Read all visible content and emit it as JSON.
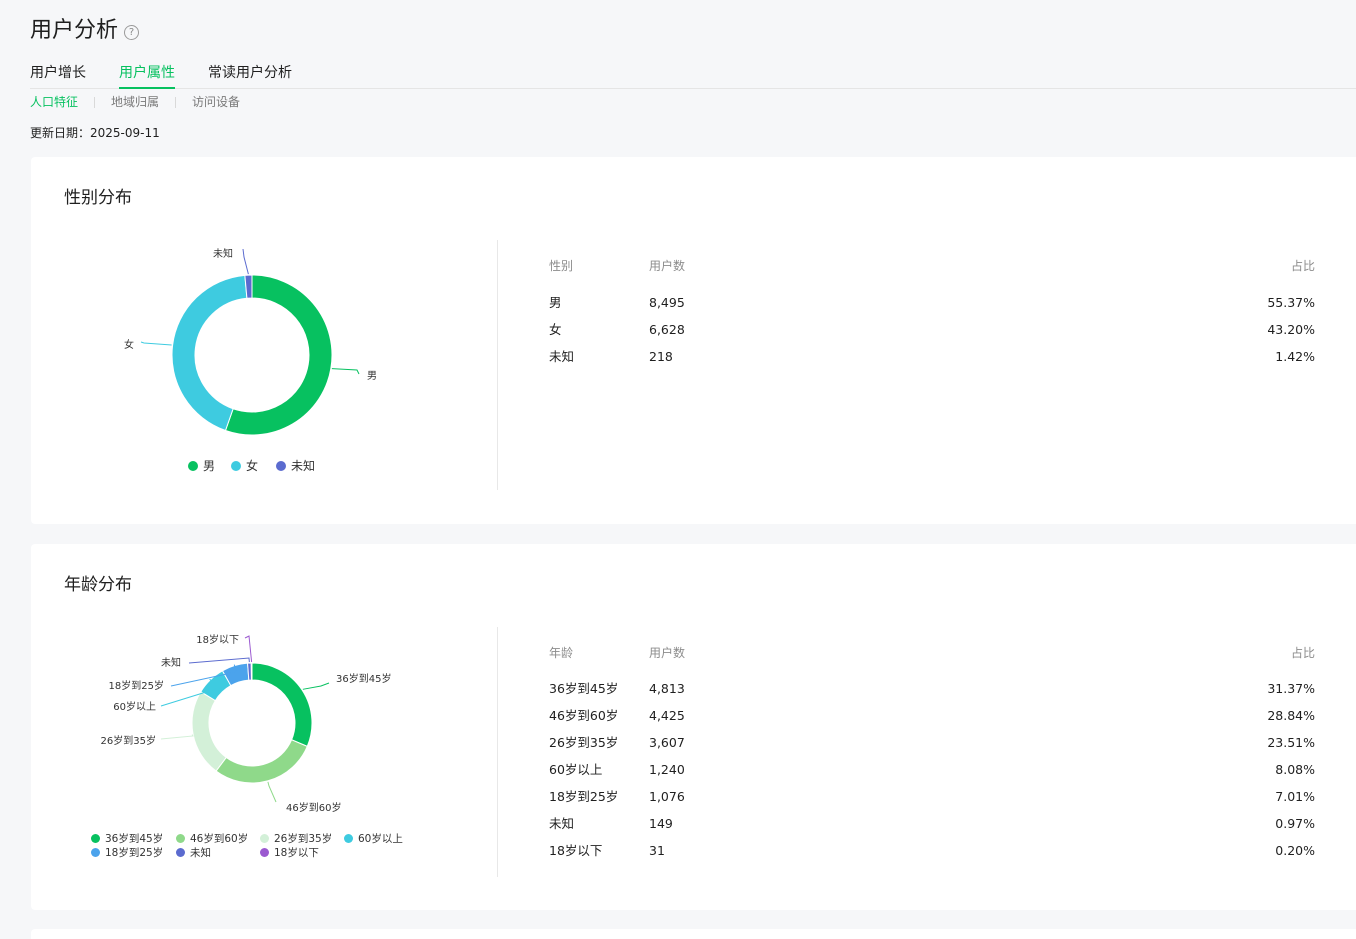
{
  "header": {
    "title": "用户分析",
    "help_icon": "question-circle-icon"
  },
  "tabs": [
    {
      "label": "用户增长",
      "active": false
    },
    {
      "label": "用户属性",
      "active": true
    },
    {
      "label": "常读用户分析",
      "active": false
    }
  ],
  "subtabs": [
    {
      "label": "人口特征",
      "active": true
    },
    {
      "label": "地域归属",
      "active": false
    },
    {
      "label": "访问设备",
      "active": false
    }
  ],
  "update": {
    "label": "更新日期：",
    "date": "2025-09-11"
  },
  "colors": {
    "accent": "#07c160"
  },
  "gender": {
    "title": "性别分布",
    "headers": {
      "c1": "性别",
      "c2": "用户数",
      "c3": "占比"
    },
    "rows": [
      {
        "name": "男",
        "count": "8,495",
        "pct": "55.37%",
        "color": "#07c160"
      },
      {
        "name": "女",
        "count": "6,628",
        "pct": "43.20%",
        "color": "#3ecbe0"
      },
      {
        "name": "未知",
        "count": "218",
        "pct": "1.42%",
        "color": "#5b6bcf"
      }
    ]
  },
  "age": {
    "title": "年龄分布",
    "headers": {
      "c1": "年龄",
      "c2": "用户数",
      "c3": "占比"
    },
    "rows": [
      {
        "name": "36岁到45岁",
        "count": "4,813",
        "pct": "31.37%",
        "color": "#07c160"
      },
      {
        "name": "46岁到60岁",
        "count": "4,425",
        "pct": "28.84%",
        "color": "#8fd98a"
      },
      {
        "name": "26岁到35岁",
        "count": "3,607",
        "pct": "23.51%",
        "color": "#d3f0d8"
      },
      {
        "name": "60岁以上",
        "count": "1,240",
        "pct": "8.08%",
        "color": "#3ecbe0"
      },
      {
        "name": "18岁到25岁",
        "count": "1,076",
        "pct": "7.01%",
        "color": "#4ba3ec"
      },
      {
        "name": "未知",
        "count": "149",
        "pct": "0.97%",
        "color": "#5b6bcf"
      },
      {
        "name": "18岁以下",
        "count": "31",
        "pct": "0.20%",
        "color": "#9b59d0"
      }
    ]
  },
  "chart_data": [
    {
      "type": "pie",
      "title": "性别分布",
      "categories": [
        "男",
        "女",
        "未知"
      ],
      "values": [
        8495,
        6628,
        218
      ],
      "percent": [
        55.37,
        43.2,
        1.42
      ],
      "legend": "bottom"
    },
    {
      "type": "pie",
      "title": "年龄分布",
      "categories": [
        "36岁到45岁",
        "46岁到60岁",
        "26岁到35岁",
        "60岁以上",
        "18岁到25岁",
        "未知",
        "18岁以下"
      ],
      "values": [
        4813,
        4425,
        3607,
        1240,
        1076,
        149,
        31
      ],
      "percent": [
        31.37,
        28.84,
        23.51,
        8.08,
        7.01,
        0.97,
        0.2
      ],
      "legend": "bottom"
    }
  ]
}
